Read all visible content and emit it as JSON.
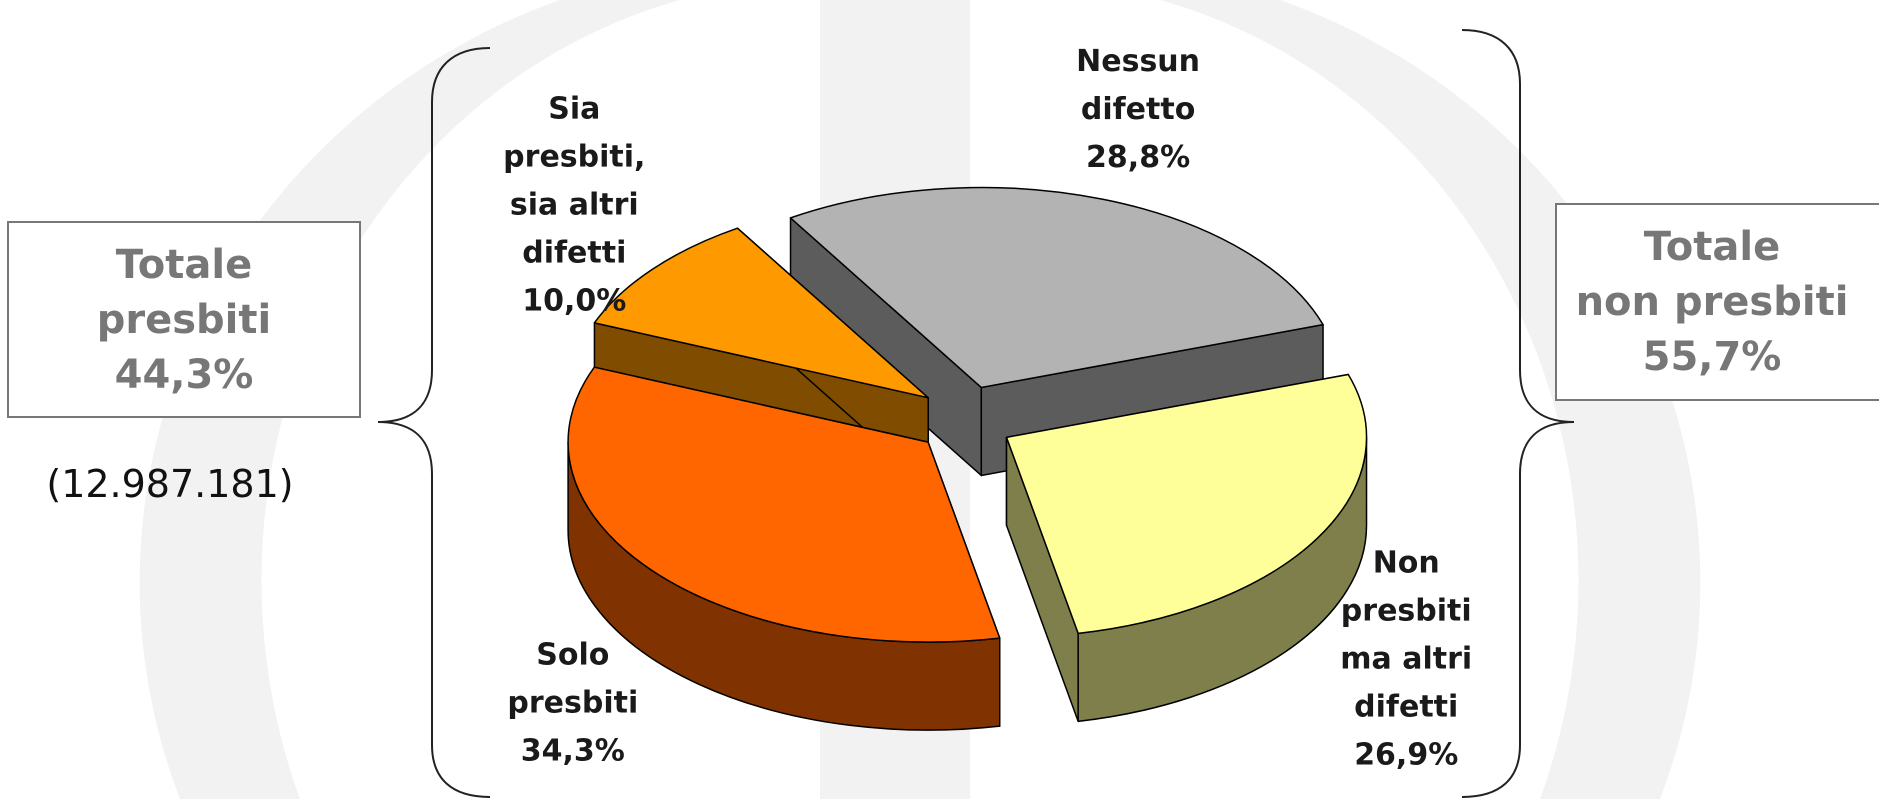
{
  "chart_data": {
    "type": "pie",
    "categories": [
      "Nessun difetto",
      "Non presbiti ma altri difetti",
      "Solo presbiti",
      "Sia presbiti, sia altri difetti"
    ],
    "values": [
      28.8,
      26.9,
      34.3,
      10.0
    ],
    "unit": "%",
    "three_d": true,
    "exploded": true,
    "slices": [
      {
        "lines": [
          "Nessun",
          "difetto"
        ],
        "value_label": "28,8%",
        "color": "#b3b3b3",
        "side_color": "#5c5c5c"
      },
      {
        "lines": [
          "Non",
          "presbiti",
          "ma altri",
          "difetti"
        ],
        "value_label": "26,9%",
        "color": "#ffff99",
        "side_color": "#7f7f4c"
      },
      {
        "lines": [
          "Solo",
          "presbiti"
        ],
        "value_label": "34,3%",
        "color": "#ff6600",
        "side_color": "#803300"
      },
      {
        "lines": [
          "Sia",
          "presbiti,",
          "sia altri",
          "difetti"
        ],
        "value_label": "10,0%",
        "color": "#ff9900",
        "side_color": "#804d00"
      }
    ]
  },
  "totals": {
    "presbiti": {
      "lines": [
        "Totale",
        "presbiti",
        "44,3%"
      ],
      "count": "(12.987.181)"
    },
    "non_presbiti": {
      "lines": [
        "Totale",
        "non presbiti",
        "55,7%"
      ]
    }
  },
  "colors": {
    "box_border": "#777777",
    "box_text": "#777777",
    "watermark": "#f2f2f2",
    "brace": "#222222"
  }
}
